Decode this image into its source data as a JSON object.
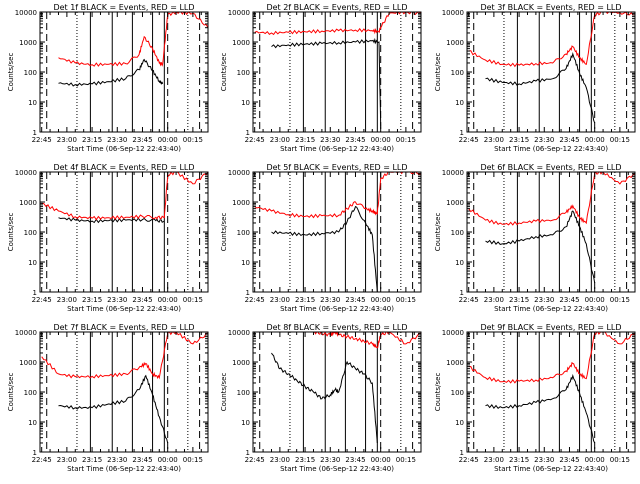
{
  "figure": {
    "xlabel": "Start Time (06-Sep-12 22:43:40)",
    "ylabel": "Counts/sec",
    "xticks": [
      "22:45",
      "23:00",
      "23:15",
      "23:30",
      "23:45",
      "00:00",
      "00:15"
    ],
    "yticks": [
      "1",
      "10",
      "100",
      "1000",
      "10000"
    ],
    "colors": {
      "events": "#000000",
      "lld": "#ff0000",
      "axes": "#000000",
      "background": "#ffffff"
    }
  },
  "chart_data": [
    {
      "type": "line",
      "title": "Det 1f BLACK = Events, RED = LLD",
      "x_range_minutes": [
        -1,
        99
      ],
      "ylim": [
        1,
        10000
      ],
      "yscale": "log",
      "x": [
        10,
        20,
        30,
        40,
        50,
        58,
        61,
        66,
        70,
        72,
        75,
        80,
        90,
        99
      ],
      "series": [
        {
          "name": "Events",
          "values": [
            42,
            38,
            40,
            48,
            60,
            120,
            260,
            110,
            50,
            40,
            null,
            null,
            null,
            null
          ]
        },
        {
          "name": "LLD",
          "values": [
            300,
            200,
            175,
            180,
            190,
            380,
            1500,
            600,
            200,
            180,
            8000,
            10000,
            9000,
            3000
          ]
        }
      ]
    },
    {
      "type": "line",
      "title": "Det 2f BLACK = Events, RED = LLD",
      "x_range_minutes": [
        -1,
        99
      ],
      "ylim": [
        1,
        10000
      ],
      "yscale": "log",
      "x": [
        0,
        10,
        20,
        30,
        40,
        50,
        60,
        70,
        74,
        75,
        80,
        90,
        99
      ],
      "series": [
        {
          "name": "Events",
          "values": [
            null,
            700,
            800,
            850,
            900,
            950,
            1000,
            1100,
            1000,
            1.5,
            null,
            null,
            null
          ]
        },
        {
          "name": "LLD",
          "values": [
            2100,
            2000,
            2100,
            2200,
            2300,
            2400,
            2500,
            2400,
            2200,
            3000,
            9000,
            10000,
            9000
          ]
        }
      ]
    },
    {
      "type": "line",
      "title": "Det 3f BLACK = Events, RED = LLD",
      "x_range_minutes": [
        -1,
        99
      ],
      "ylim": [
        1,
        10000
      ],
      "yscale": "log",
      "x": [
        0,
        10,
        20,
        30,
        40,
        50,
        58,
        62,
        66,
        70,
        75,
        80,
        90,
        99
      ],
      "series": [
        {
          "name": "Events",
          "values": [
            null,
            60,
            45,
            40,
            50,
            60,
            130,
            400,
            90,
            30,
            2,
            null,
            null,
            null
          ]
        },
        {
          "name": "LLD",
          "values": [
            500,
            250,
            180,
            170,
            190,
            200,
            400,
            700,
            300,
            180,
            8000,
            10000,
            9500,
            8000
          ]
        }
      ]
    },
    {
      "type": "line",
      "title": "Det 4f BLACK = Events, RED = LLD",
      "x_range_minutes": [
        -1,
        99
      ],
      "ylim": [
        1,
        10000
      ],
      "yscale": "log",
      "x": [
        0,
        10,
        20,
        30,
        40,
        50,
        60,
        68,
        73,
        75,
        80,
        90,
        99
      ],
      "series": [
        {
          "name": "Events",
          "values": [
            null,
            300,
            250,
            230,
            240,
            250,
            260,
            240,
            230,
            null,
            null,
            null,
            null
          ]
        },
        {
          "name": "LLD",
          "values": [
            900,
            500,
            320,
            290,
            300,
            310,
            330,
            310,
            300,
            8000,
            10000,
            4000,
            10000
          ]
        }
      ]
    },
    {
      "type": "line",
      "title": "Det 5f BLACK = Events, RED = LLD",
      "x_range_minutes": [
        -1,
        99
      ],
      "ylim": [
        1,
        10000
      ],
      "yscale": "log",
      "x": [
        0,
        10,
        20,
        30,
        40,
        50,
        55,
        60,
        66,
        70,
        73,
        75,
        80,
        90,
        99
      ],
      "series": [
        {
          "name": "Events",
          "values": [
            null,
            100,
            90,
            80,
            90,
            100,
            220,
            700,
            200,
            80,
            1,
            null,
            null,
            null,
            null
          ]
        },
        {
          "name": "LLD",
          "values": [
            700,
            500,
            380,
            330,
            350,
            360,
            600,
            1000,
            600,
            500,
            400,
            6000,
            10000,
            10000,
            9000
          ]
        }
      ]
    },
    {
      "type": "line",
      "title": "Det 6f BLACK = Events, RED = LLD",
      "x_range_minutes": [
        -1,
        99
      ],
      "ylim": [
        1,
        10000
      ],
      "yscale": "log",
      "x": [
        0,
        10,
        20,
        30,
        40,
        50,
        58,
        62,
        66,
        70,
        75,
        80,
        90,
        99
      ],
      "series": [
        {
          "name": "Events",
          "values": [
            null,
            50,
            40,
            50,
            70,
            80,
            150,
            500,
            150,
            40,
            2,
            null,
            null,
            null
          ]
        },
        {
          "name": "LLD",
          "values": [
            600,
            250,
            180,
            200,
            230,
            250,
            450,
            750,
            300,
            200,
            9000,
            10000,
            4000,
            9000
          ]
        }
      ]
    },
    {
      "type": "line",
      "title": "Det 7f BLACK = Events, RED = LLD",
      "x_range_minutes": [
        -1,
        99
      ],
      "ylim": [
        1,
        10000
      ],
      "yscale": "log",
      "x": [
        0,
        10,
        20,
        30,
        40,
        50,
        58,
        62,
        66,
        70,
        75,
        80,
        90,
        99
      ],
      "series": [
        {
          "name": "Events",
          "values": [
            null,
            35,
            30,
            30,
            40,
            50,
            120,
            350,
            80,
            15,
            2,
            null,
            null,
            null
          ]
        },
        {
          "name": "LLD",
          "values": [
            1500,
            400,
            320,
            330,
            350,
            400,
            650,
            900,
            400,
            300,
            9000,
            10000,
            4000,
            9000
          ]
        }
      ]
    },
    {
      "type": "line",
      "title": "Det 8f BLACK = Events, RED = LLD",
      "x_range_minutes": [
        -1,
        99
      ],
      "ylim": [
        1,
        10000
      ],
      "yscale": "log",
      "x": [
        10,
        15,
        20,
        25,
        30,
        35,
        40,
        45,
        48,
        50,
        55,
        60,
        65,
        70,
        73,
        75,
        80,
        90,
        99
      ],
      "series": [
        {
          "name": "Events",
          "values": [
            2000,
            600,
            400,
            250,
            150,
            100,
            60,
            80,
            120,
            100,
            1000,
            600,
            400,
            200,
            2,
            null,
            null,
            null,
            null
          ]
        },
        {
          "name": "LLD",
          "values": [
            null,
            null,
            null,
            null,
            null,
            10000,
            9000,
            8000,
            10000,
            8000,
            7000,
            6000,
            5000,
            4000,
            3000,
            8000,
            10000,
            4000,
            9000
          ]
        }
      ]
    },
    {
      "type": "line",
      "title": "Det 9f BLACK = Events, RED = LLD",
      "x_range_minutes": [
        -1,
        99
      ],
      "ylim": [
        1,
        10000
      ],
      "yscale": "log",
      "x": [
        0,
        10,
        20,
        30,
        40,
        50,
        58,
        62,
        66,
        70,
        75,
        80,
        90,
        99
      ],
      "series": [
        {
          "name": "Events",
          "values": [
            null,
            35,
            30,
            35,
            45,
            60,
            120,
            350,
            90,
            20,
            2,
            null,
            null,
            null
          ]
        },
        {
          "name": "LLD",
          "values": [
            700,
            300,
            220,
            230,
            250,
            300,
            500,
            900,
            400,
            280,
            9000,
            10000,
            4000,
            9000
          ]
        }
      ]
    }
  ]
}
